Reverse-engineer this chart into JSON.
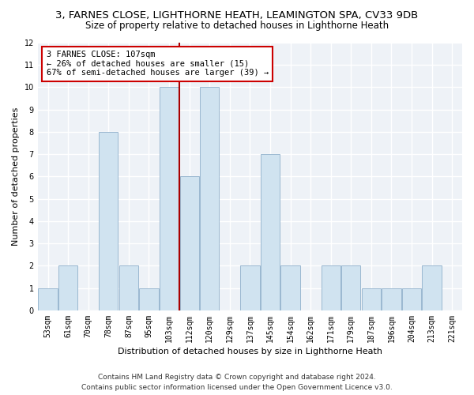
{
  "title_line1": "3, FARNES CLOSE, LIGHTHORNE HEATH, LEAMINGTON SPA, CV33 9DB",
  "title_line2": "Size of property relative to detached houses in Lighthorne Heath",
  "xlabel": "Distribution of detached houses by size in Lighthorne Heath",
  "ylabel": "Number of detached properties",
  "footer_line1": "Contains HM Land Registry data © Crown copyright and database right 2024.",
  "footer_line2": "Contains public sector information licensed under the Open Government Licence v3.0.",
  "categories": [
    "53sqm",
    "61sqm",
    "70sqm",
    "78sqm",
    "87sqm",
    "95sqm",
    "103sqm",
    "112sqm",
    "120sqm",
    "129sqm",
    "137sqm",
    "145sqm",
    "154sqm",
    "162sqm",
    "171sqm",
    "179sqm",
    "187sqm",
    "196sqm",
    "204sqm",
    "213sqm",
    "221sqm"
  ],
  "values": [
    1,
    2,
    0,
    8,
    2,
    1,
    10,
    6,
    10,
    0,
    2,
    7,
    2,
    0,
    2,
    2,
    1,
    1,
    1,
    2,
    0
  ],
  "bar_color": "#d0e3f0",
  "bar_edge_color": "#9ab8d0",
  "vline_x_index": 7,
  "vline_color": "#aa0000",
  "annotation_text": "3 FARNES CLOSE: 107sqm\n← 26% of detached houses are smaller (15)\n67% of semi-detached houses are larger (39) →",
  "annotation_box_facecolor": "#ffffff",
  "annotation_box_edgecolor": "#cc0000",
  "ylim": [
    0,
    12
  ],
  "yticks": [
    0,
    1,
    2,
    3,
    4,
    5,
    6,
    7,
    8,
    9,
    10,
    11,
    12
  ],
  "bg_color": "#ffffff",
  "plot_bg_color": "#eef2f7",
  "grid_color": "#ffffff",
  "title_fontsize": 9.5,
  "subtitle_fontsize": 8.5,
  "axis_label_fontsize": 8,
  "tick_fontsize": 7,
  "footer_fontsize": 6.5
}
